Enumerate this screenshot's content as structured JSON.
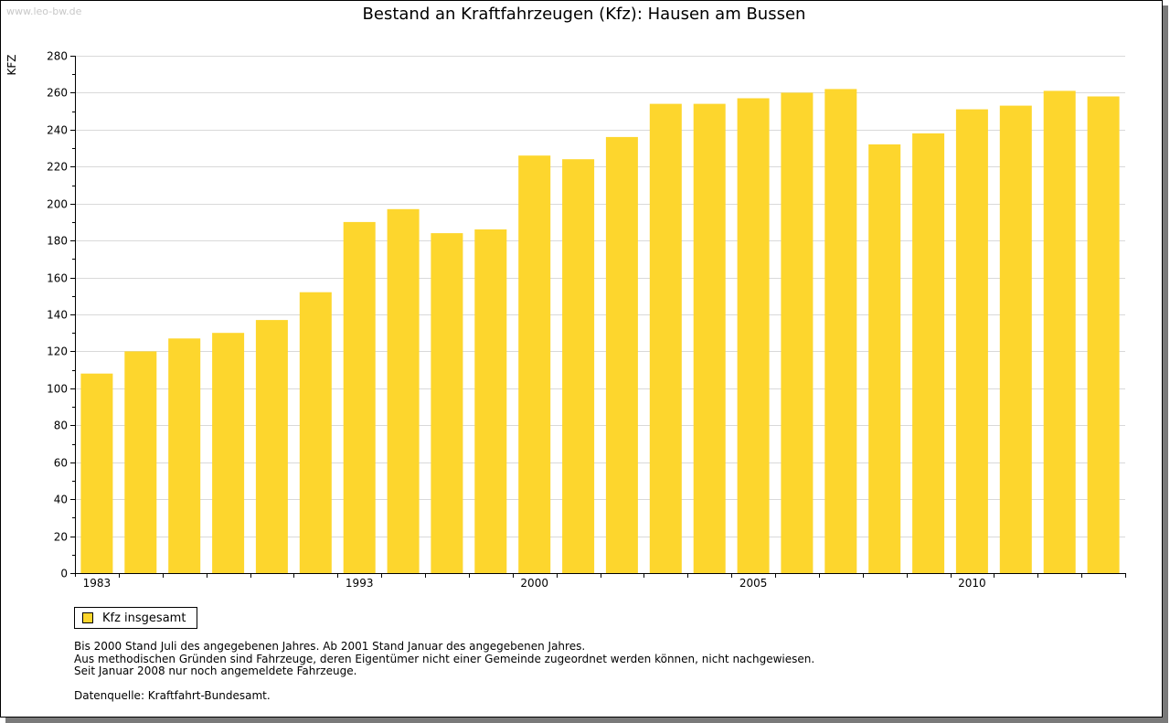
{
  "watermark": "www.leo-bw.de",
  "colors": {
    "bar": "#fdd62d",
    "grid": "#d9d9d9",
    "axis": "#000000"
  },
  "chart_data": {
    "type": "bar",
    "title": "Bestand an Kraftfahrzeugen (Kfz): Hausen am Bussen",
    "xlabel": "",
    "ylabel": "KFZ",
    "ylim": [
      0,
      280
    ],
    "yticks": [
      0,
      20,
      40,
      60,
      80,
      100,
      120,
      140,
      160,
      180,
      200,
      220,
      240,
      260,
      280
    ],
    "grid": true,
    "categories": [
      "1983",
      "",
      "",
      "",
      "",
      "",
      "1993",
      "",
      "",
      "",
      "2000",
      "",
      "",
      "",
      "",
      "2005",
      "",
      "",
      "",
      "",
      "2010",
      "",
      "",
      ""
    ],
    "series": [
      {
        "name": "Kfz insgesamt",
        "values": [
          108,
          120,
          127,
          130,
          137,
          152,
          190,
          197,
          184,
          186,
          226,
          224,
          236,
          254,
          254,
          257,
          260,
          262,
          232,
          238,
          251,
          253,
          261,
          258
        ]
      }
    ],
    "legend_position": "bottom-left"
  },
  "legend": {
    "label": "Kfz insgesamt"
  },
  "notes": [
    "Bis 2000 Stand Juli des angegebenen Jahres. Ab 2001 Stand Januar des angegebenen Jahres.",
    "Aus methodischen Gründen sind Fahrzeuge, deren Eigentümer nicht einer Gemeinde zugeordnet werden können, nicht nachgewiesen.",
    "Seit Januar 2008 nur noch angemeldete Fahrzeuge."
  ],
  "source": "Datenquelle: Kraftfahrt-Bundesamt."
}
